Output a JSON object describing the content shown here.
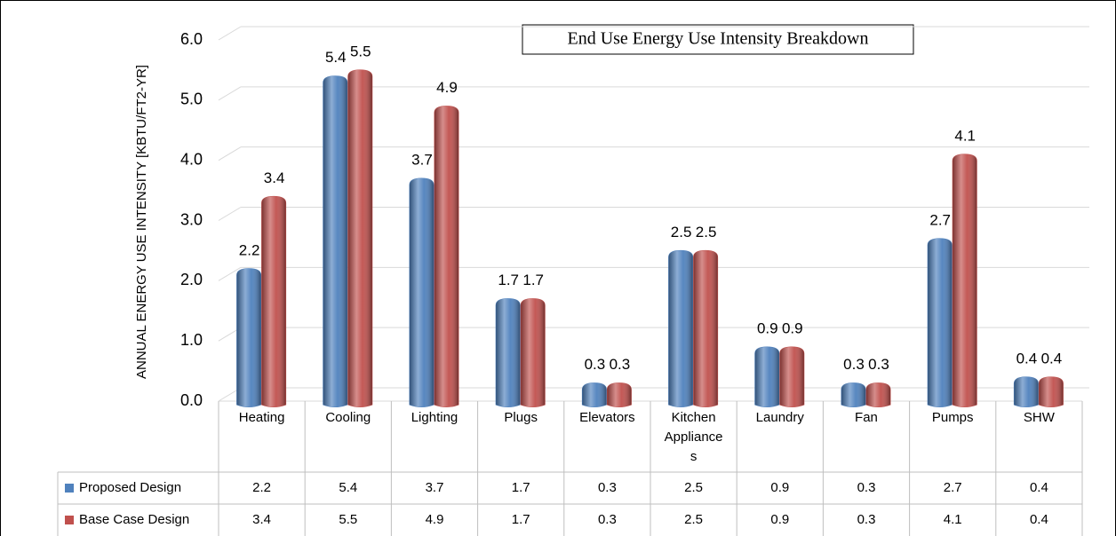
{
  "chart_data": {
    "type": "bar",
    "title": "End Use Energy Use Intensity Breakdown",
    "ylabel": "ANNUAL ENERGY USE INTENSITY [KBTU/FT2-YR]",
    "categories": [
      "Heating",
      "Cooling",
      "Lighting",
      "Plugs",
      "Elevators",
      "Kitchen Appliances",
      "Laundry",
      "Fan",
      "Pumps",
      "SHW"
    ],
    "series": [
      {
        "name": "Proposed Design",
        "color": "#4f81bd",
        "values": [
          2.2,
          5.4,
          3.7,
          1.7,
          0.3,
          2.5,
          0.9,
          0.3,
          2.7,
          0.4
        ]
      },
      {
        "name": "Base Case Design",
        "color": "#c0504d",
        "values": [
          3.4,
          5.5,
          4.9,
          1.7,
          0.3,
          2.5,
          0.9,
          0.3,
          4.1,
          0.4
        ]
      }
    ],
    "ylim": [
      0,
      6
    ],
    "yticks": [
      {
        "value": 0,
        "label": "0.0"
      },
      {
        "value": 1,
        "label": "1.0"
      },
      {
        "value": 2,
        "label": "2.0"
      },
      {
        "value": 3,
        "label": "3.0"
      },
      {
        "value": 4,
        "label": "4.0"
      },
      {
        "value": 5,
        "label": "5.0"
      },
      {
        "value": 6,
        "label": "6.0"
      }
    ],
    "grid": true
  }
}
